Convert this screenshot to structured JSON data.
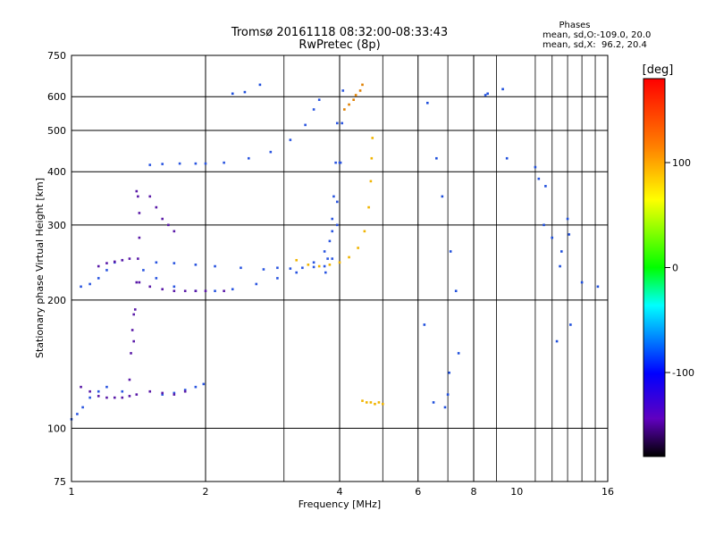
{
  "chart_data": {
    "type": "scatter",
    "title": "Tromsø 20161118 08:32:00-08:33:43",
    "subtitle": "RwPretec (8p)",
    "phases_header": "Phases",
    "phases_line1": "mean, sd,O:-109.0, 20.0",
    "phases_line2": "mean, sd,X:  96.2, 20.4",
    "xlabel": "Frequency [MHz]",
    "ylabel": "Stationary phase Virtual Height [km]",
    "x_scale": "log",
    "y_scale": "log",
    "xlim": [
      1,
      16
    ],
    "ylim": [
      75,
      750
    ],
    "x_ticks": [
      {
        "v": 1,
        "label": "1"
      },
      {
        "v": 2,
        "label": "2"
      },
      {
        "v": 4,
        "label": "4"
      },
      {
        "v": 6,
        "label": "6"
      },
      {
        "v": 8,
        "label": "8"
      },
      {
        "v": 10,
        "label": "10"
      },
      {
        "v": 16,
        "label": "16"
      }
    ],
    "x_grid": [
      2,
      4,
      6,
      8
    ],
    "x_minor": [
      3,
      5,
      7,
      9,
      11,
      12,
      13,
      14,
      15
    ],
    "y_ticks": [
      {
        "v": 75,
        "label": "75"
      },
      {
        "v": 100,
        "label": "100"
      },
      {
        "v": 200,
        "label": "200"
      },
      {
        "v": 300,
        "label": "300"
      },
      {
        "v": 400,
        "label": "400"
      },
      {
        "v": 500,
        "label": "500"
      },
      {
        "v": 600,
        "label": "600"
      },
      {
        "v": 750,
        "label": "750"
      }
    ],
    "y_grid": [
      100,
      200,
      300,
      400,
      500,
      600
    ],
    "grid": true,
    "colorbar": {
      "label": "[deg]",
      "range": [
        -180,
        180
      ],
      "ticks": [
        {
          "v": 100,
          "label": "100"
        },
        {
          "v": 0,
          "label": "0"
        },
        {
          "v": -100,
          "label": "-100"
        }
      ],
      "colors": [
        "#ff0000",
        "#ff8000",
        "#ffff00",
        "#00ff00",
        "#00ffff",
        "#0000ff",
        "#6000c0",
        "#000000"
      ]
    },
    "series": [
      {
        "label": "O",
        "color": "#2a55e0",
        "traces": [
          {
            "x": [
              1.5,
              1.6,
              1.75,
              1.9,
              2.0,
              2.2,
              2.5,
              2.8,
              3.1,
              3.35,
              3.5,
              3.6
            ],
            "y": [
              415,
              417,
              418,
              418,
              418,
              420,
              430,
              445,
              475,
              515,
              560,
              590
            ]
          },
          {
            "x": [
              1.55,
              1.7,
              1.9,
              2.1,
              2.4,
              2.7,
              2.9,
              3.1,
              3.3,
              3.5,
              3.7,
              3.85,
              3.95,
              4.0
            ],
            "y": [
              245,
              244,
              242,
              240,
              238,
              236,
              238,
              237,
              238,
              239,
              240,
              250,
              300,
              420
            ]
          },
          {
            "x": [
              3.72,
              3.76,
              3.8,
              3.85,
              3.88,
              3.92,
              3.95
            ],
            "y": [
              232,
              250,
              275,
              310,
              350,
              420,
              520
            ]
          },
          {
            "x": [
              1.45,
              1.55,
              1.7,
              1.9,
              2.1,
              2.3,
              2.6,
              2.9,
              3.2,
              3.5,
              3.7,
              3.85,
              3.95,
              4.02,
              4.05,
              4.07
            ],
            "y": [
              235,
              225,
              215,
              210,
              210,
              212,
              218,
              225,
              232,
              245,
              260,
              290,
              340,
              420,
              520,
              620
            ]
          },
          {
            "x": [
              1.05,
              1.1,
              1.15,
              1.2,
              1.25,
              1.3
            ],
            "y": [
              215,
              218,
              225,
              235,
              245,
              248
            ]
          },
          {
            "x": [
              1.0,
              1.03,
              1.06,
              1.1,
              1.15,
              1.2,
              1.3
            ],
            "y": [
              105,
              108,
              112,
              118,
              122,
              125,
              122
            ]
          },
          {
            "x": [
              1.6,
              1.7,
              1.8,
              1.9,
              1.98
            ],
            "y": [
              120,
              121,
              123,
              125,
              127
            ]
          }
        ]
      },
      {
        "label": "O-purple",
        "color": "#5a1aa8",
        "traces": [
          {
            "x": [
              1.05,
              1.1,
              1.15,
              1.2,
              1.25,
              1.3,
              1.35,
              1.4,
              1.5,
              1.6,
              1.7,
              1.8
            ],
            "y": [
              125,
              122,
              119,
              118,
              118,
              118,
              119,
              120,
              122,
              121,
              120,
              122
            ]
          },
          {
            "x": [
              1.38,
              1.39,
              1.4,
              1.41,
              1.42,
              1.42,
              1.41,
              1.4
            ],
            "y": [
              160,
              190,
              220,
              250,
              280,
              320,
              350,
              360
            ]
          },
          {
            "x": [
              1.35,
              1.36,
              1.37,
              1.38
            ],
            "y": [
              130,
              150,
              170,
              185
            ]
          },
          {
            "x": [
              1.15,
              1.2,
              1.25,
              1.3,
              1.35
            ],
            "y": [
              240,
              244,
              246,
              248,
              250
            ]
          },
          {
            "x": [
              1.42,
              1.5,
              1.6,
              1.7,
              1.8,
              1.9,
              2.0,
              2.2
            ],
            "y": [
              220,
              215,
              212,
              210,
              210,
              210,
              210,
              210
            ]
          },
          {
            "x": [
              1.5,
              1.55,
              1.6,
              1.65,
              1.7
            ],
            "y": [
              350,
              330,
              310,
              300,
              290
            ]
          }
        ]
      },
      {
        "label": "X",
        "color": "#f0b400",
        "traces": [
          {
            "x": [
              3.2,
              3.4,
              3.6,
              3.8,
              4.0,
              4.2,
              4.4,
              4.55,
              4.65,
              4.7,
              4.72,
              4.74
            ],
            "y": [
              248,
              242,
              240,
              242,
              245,
              252,
              265,
              290,
              330,
              380,
              430,
              480
            ]
          },
          {
            "x": [
              4.5,
              4.6,
              4.7,
              4.8,
              4.9,
              5.0
            ],
            "y": [
              116,
              115,
              115,
              114,
              115,
              114
            ]
          }
        ]
      },
      {
        "label": "X-outliers",
        "color": "#e08000",
        "traces": [
          {
            "x": [
              4.1,
              4.2,
              4.3,
              4.35,
              4.45,
              4.5
            ],
            "y": [
              560,
              575,
              590,
              605,
              620,
              640
            ]
          }
        ]
      },
      {
        "label": "scattered",
        "color": "#1f4fdc",
        "traces": [
          {
            "x": [
              2.3,
              2.45,
              2.65,
              6.3,
              6.6,
              6.8,
              7.1,
              7.3,
              7.4,
              8.5,
              9.3,
              9.5,
              11.2,
              11.5,
              12.3,
              12.5,
              13.0,
              13.1,
              14.0,
              15.2,
              6.2,
              6.5,
              6.9,
              7.0,
              7.05,
              8.6,
              11.0,
              11.6,
              12.0,
              12.6,
              13.2
            ],
            "y": [
              610,
              615,
              640,
              580,
              430,
              350,
              260,
              210,
              150,
              605,
              625,
              430,
              385,
              300,
              160,
              240,
              310,
              285,
              220,
              215,
              175,
              115,
              112,
              120,
              135,
              610,
              410,
              370,
              280,
              260,
              175
            ]
          }
        ]
      }
    ]
  }
}
